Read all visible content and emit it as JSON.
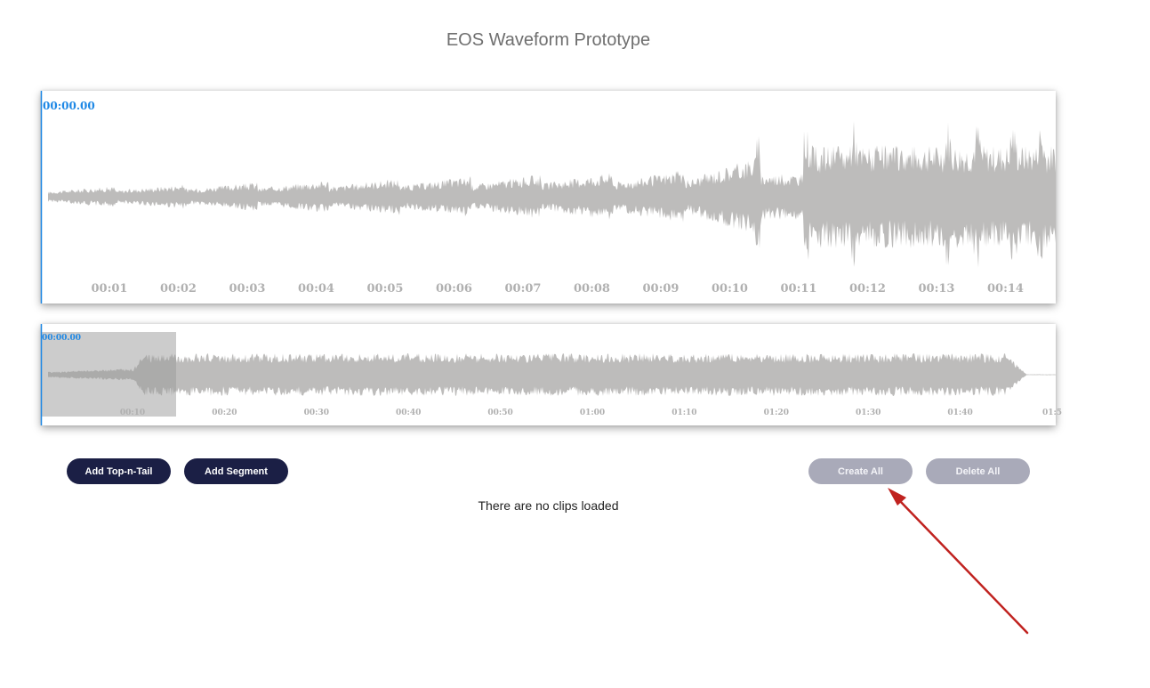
{
  "page": {
    "title": "EOS Waveform Prototype"
  },
  "zoomview": {
    "current_time": "00:00.00",
    "axis_labels": [
      "00:01",
      "00:02",
      "00:03",
      "00:04",
      "00:05",
      "00:06",
      "00:07",
      "00:08",
      "00:09",
      "00:10",
      "00:11",
      "00:12",
      "00:13",
      "00:14"
    ]
  },
  "overview": {
    "current_time": "00:00.00",
    "axis_labels": [
      "00:10",
      "00:20",
      "00:30",
      "00:40",
      "00:50",
      "01:00",
      "01:10",
      "01:20",
      "01:30",
      "01:40",
      "01:5"
    ]
  },
  "controls": {
    "add_top_n_tail": "Add Top-n-Tail",
    "add_segment": "Add Segment",
    "create_all": "Create All",
    "delete_all": "Delete All"
  },
  "status": {
    "message": "There are no clips loaded"
  },
  "colors": {
    "waveform": "#bdbcbb",
    "playhead": "#1e88e5",
    "highlight": "#9a9a9a",
    "button_dark": "#1b1f45",
    "button_muted": "#a9aab9",
    "annotation_arrow": "#c0221f"
  }
}
